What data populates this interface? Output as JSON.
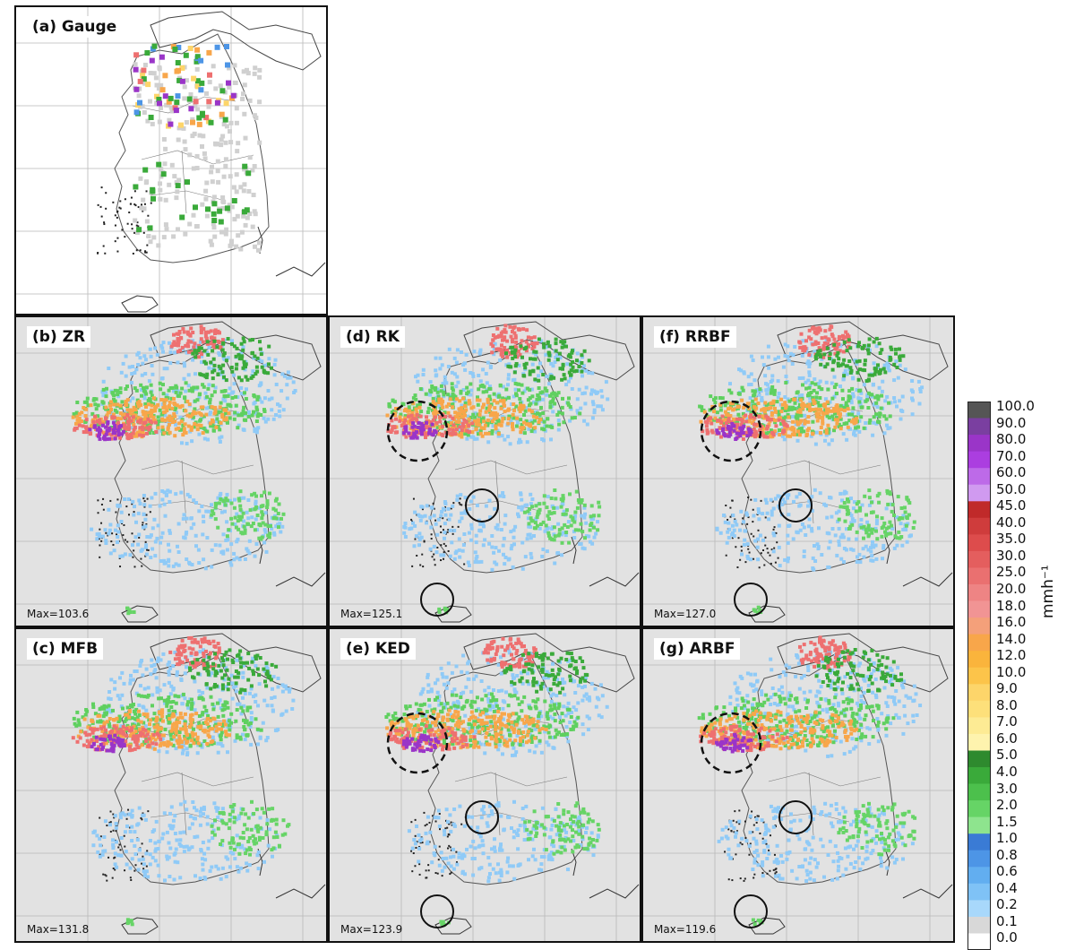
{
  "panels": [
    {
      "id": "a",
      "label": "(a)  Gauge",
      "max": "",
      "kind": "gauge"
    },
    {
      "id": "b",
      "label": "(b)  ZR",
      "max": "Max=103.6",
      "kind": "radar",
      "circles": false
    },
    {
      "id": "d",
      "label": "(d)  RK",
      "max": "Max=125.1",
      "kind": "radar",
      "circles": true
    },
    {
      "id": "f",
      "label": "(f)  RRBF",
      "max": "Max=127.0",
      "kind": "radar",
      "circles": true
    },
    {
      "id": "c",
      "label": "(c)  MFB",
      "max": "Max=131.8",
      "kind": "radar",
      "circles": false
    },
    {
      "id": "e",
      "label": "(e)  KED",
      "max": "Max=123.9",
      "kind": "radar",
      "circles": true
    },
    {
      "id": "g",
      "label": "(g)  ARBF",
      "max": "Max=119.6",
      "kind": "radar",
      "circles": true
    }
  ],
  "colorbar": {
    "unit": "mmh⁻¹",
    "ticks": [
      "100.0",
      "90.0",
      "80.0",
      "70.0",
      "60.0",
      "50.0",
      "45.0",
      "40.0",
      "35.0",
      "30.0",
      "25.0",
      "20.0",
      "18.0",
      "16.0",
      "14.0",
      "12.0",
      "10.0",
      "9.0",
      "8.0",
      "7.0",
      "6.0",
      "5.0",
      "4.0",
      "3.0",
      "2.0",
      "1.5",
      "1.0",
      "0.8",
      "0.6",
      "0.4",
      "0.2",
      "0.1",
      "0.0"
    ],
    "colors": [
      "#555555",
      "#7a3fa0",
      "#9a35c8",
      "#ab3ee0",
      "#bd6ae8",
      "#d09af0",
      "#c02a2a",
      "#cf3c3c",
      "#dd4c4c",
      "#e45e5e",
      "#ea7070",
      "#ee8484",
      "#f19494",
      "#f4a07a",
      "#f8a64a",
      "#fab43c",
      "#fcc44a",
      "#fdd56a",
      "#fde07a",
      "#fdeb94",
      "#fef3ae",
      "#2e8a2e",
      "#3aaa3a",
      "#4cc04c",
      "#66d466",
      "#8ee48e",
      "#3a7bd5",
      "#4d95e6",
      "#62aef0",
      "#7fc2f6",
      "#a8d8fb",
      "#d8d8d8",
      "#ffffff"
    ]
  }
}
